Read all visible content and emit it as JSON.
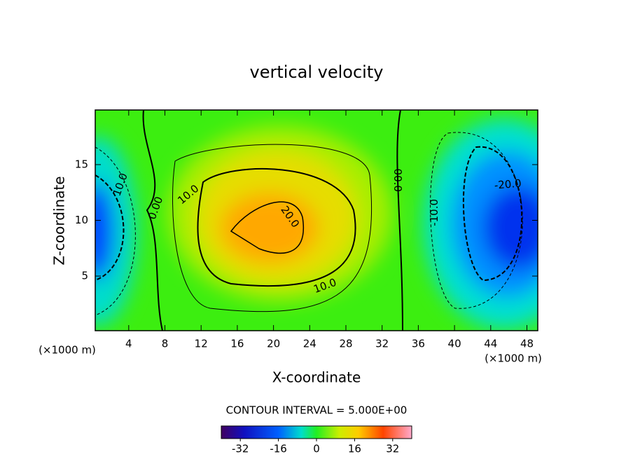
{
  "chart_data": {
    "type": "contour",
    "title": "vertical velocity",
    "x_label": "X-coordinate",
    "y_label": "Z-coordinate",
    "x_unit": "(×1000 m)",
    "y_unit": "(×1000 m)",
    "xlim": [
      0.3,
      49.2
    ],
    "xticks": [
      4,
      8,
      12,
      16,
      20,
      24,
      28,
      32,
      36,
      40,
      44,
      48
    ],
    "ylim": [
      0.1,
      19.9
    ],
    "yticks": [
      5,
      10,
      15
    ],
    "contour_labels": [
      {
        "label": "10.0",
        "x": 3.1,
        "y": 13.2
      },
      {
        "label": "0.00",
        "x": 7.0,
        "y": 11.1
      },
      {
        "label": "10.0",
        "x": 10.6,
        "y": 12.3
      },
      {
        "label": "20.0",
        "x": 21.8,
        "y": 10.3
      },
      {
        "label": "10.0",
        "x": 25.7,
        "y": 4.1
      },
      {
        "label": "00.0",
        "x": 33.7,
        "y": 13.6
      },
      {
        "label": "-10.0",
        "x": 37.8,
        "y": 10.7
      },
      {
        "label": "-20.0",
        "x": 45.9,
        "y": 13.2
      }
    ],
    "colorbar_title": "CONTOUR INTERVAL = 5.000E+00",
    "colorbar_lim": [
      -40,
      40
    ],
    "colorbar_ticks": [
      -32,
      -16,
      0,
      16,
      32
    ]
  }
}
